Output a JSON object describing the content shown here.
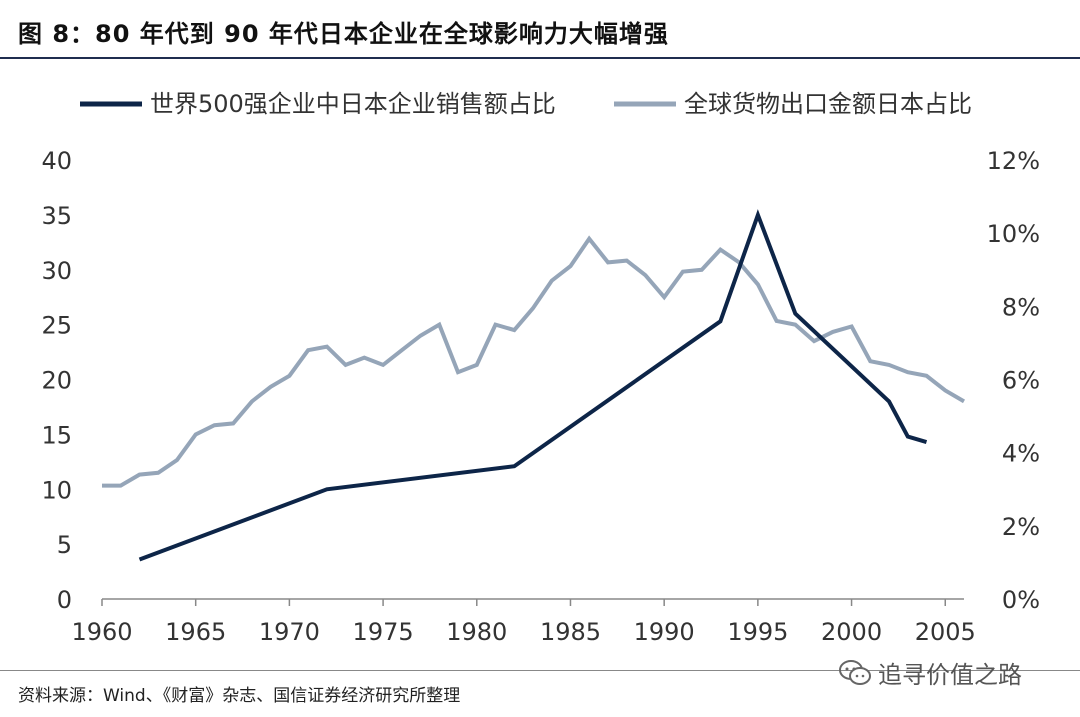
{
  "header": {
    "title": "图 8：80 年代到 90 年代日本企业在全球影响力大幅增强"
  },
  "footer": {
    "source": "资料来源：Wind、《财富》杂志、国信证券经济研究所整理",
    "watermark": "追寻价值之路"
  },
  "chart_data": {
    "type": "line",
    "title": "",
    "legend_position": "top",
    "grid": false,
    "x_axis": {
      "min": 1960,
      "max": 2006,
      "ticks": [
        1960,
        1965,
        1970,
        1975,
        1980,
        1985,
        1990,
        1995,
        2000,
        2005
      ],
      "tick_labels": [
        "1960",
        "1965",
        "1970",
        "1975",
        "1980",
        "1985",
        "1990",
        "1995",
        "2000",
        "2005"
      ]
    },
    "y_axis_left": {
      "min": 0,
      "max": 40,
      "ticks": [
        0,
        5,
        10,
        15,
        20,
        25,
        30,
        35,
        40
      ],
      "tick_labels": [
        "0",
        "5",
        "10",
        "15",
        "20",
        "25",
        "30",
        "35",
        "40"
      ]
    },
    "y_axis_right": {
      "min": 0,
      "max": 12,
      "unit": "%",
      "ticks": [
        0,
        2,
        4,
        6,
        8,
        10,
        12
      ],
      "tick_labels": [
        "0%",
        "2%",
        "4%",
        "6%",
        "8%",
        "10%",
        "12%"
      ]
    },
    "series": [
      {
        "name": "世界500强企业中日本企业销售额占比",
        "axis": "left",
        "color": "#0d2548",
        "points": [
          [
            1962,
            3.6
          ],
          [
            1972,
            10.0
          ],
          [
            1982,
            12.1
          ],
          [
            1993,
            25.3
          ],
          [
            1995,
            35.0
          ],
          [
            1997,
            26.0
          ],
          [
            2002,
            18.0
          ],
          [
            2003,
            14.8
          ],
          [
            2004,
            14.3
          ]
        ]
      },
      {
        "name": "全球货物出口金额日本占比",
        "axis": "right",
        "color": "#95a5b8",
        "points": [
          [
            1960,
            3.1
          ],
          [
            1961,
            3.1
          ],
          [
            1962,
            3.4
          ],
          [
            1963,
            3.45
          ],
          [
            1964,
            3.8
          ],
          [
            1965,
            4.5
          ],
          [
            1966,
            4.75
          ],
          [
            1967,
            4.8
          ],
          [
            1968,
            5.4
          ],
          [
            1969,
            5.8
          ],
          [
            1970,
            6.1
          ],
          [
            1971,
            6.8
          ],
          [
            1972,
            6.9
          ],
          [
            1973,
            6.4
          ],
          [
            1974,
            6.6
          ],
          [
            1975,
            6.4
          ],
          [
            1976,
            6.8
          ],
          [
            1977,
            7.2
          ],
          [
            1978,
            7.5
          ],
          [
            1979,
            6.2
          ],
          [
            1980,
            6.4
          ],
          [
            1981,
            7.5
          ],
          [
            1982,
            7.35
          ],
          [
            1983,
            7.95
          ],
          [
            1984,
            8.7
          ],
          [
            1985,
            9.1
          ],
          [
            1986,
            9.85
          ],
          [
            1987,
            9.2
          ],
          [
            1988,
            9.25
          ],
          [
            1989,
            8.85
          ],
          [
            1990,
            8.25
          ],
          [
            1991,
            8.95
          ],
          [
            1992,
            9.0
          ],
          [
            1993,
            9.55
          ],
          [
            1994,
            9.2
          ],
          [
            1995,
            8.6
          ],
          [
            1996,
            7.6
          ],
          [
            1997,
            7.5
          ],
          [
            1998,
            7.05
          ],
          [
            1999,
            7.3
          ],
          [
            2000,
            7.45
          ],
          [
            2001,
            6.5
          ],
          [
            2002,
            6.4
          ],
          [
            2003,
            6.2
          ],
          [
            2004,
            6.1
          ],
          [
            2005,
            5.7
          ],
          [
            2006,
            5.4
          ]
        ]
      }
    ]
  }
}
